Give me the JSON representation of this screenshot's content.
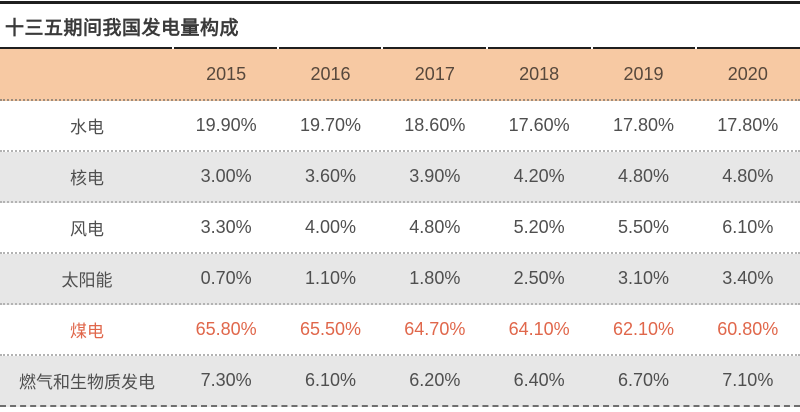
{
  "title": "十三五期间我国发电量构成",
  "chart_data": {
    "type": "table",
    "title": "十三五期间我国发电量构成",
    "columns": [
      "2015",
      "2016",
      "2017",
      "2018",
      "2019",
      "2020"
    ],
    "rows": [
      {
        "label": "水电",
        "values": [
          "19.90%",
          "19.70%",
          "18.60%",
          "17.60%",
          "17.80%",
          "17.80%"
        ],
        "highlight": false
      },
      {
        "label": "核电",
        "values": [
          "3.00%",
          "3.60%",
          "3.90%",
          "4.20%",
          "4.80%",
          "4.80%"
        ],
        "highlight": false
      },
      {
        "label": "风电",
        "values": [
          "3.30%",
          "4.00%",
          "4.80%",
          "5.20%",
          "5.50%",
          "6.10%"
        ],
        "highlight": false
      },
      {
        "label": "太阳能",
        "values": [
          "0.70%",
          "1.10%",
          "1.80%",
          "2.50%",
          "3.10%",
          "3.40%"
        ],
        "highlight": false
      },
      {
        "label": "煤电",
        "values": [
          "65.80%",
          "65.50%",
          "64.70%",
          "64.10%",
          "62.10%",
          "60.80%"
        ],
        "highlight": true
      },
      {
        "label": "燃气和生物质发电",
        "values": [
          "7.30%",
          "6.10%",
          "6.20%",
          "6.40%",
          "6.70%",
          "7.10%"
        ],
        "highlight": false
      }
    ]
  },
  "colors": {
    "top_rule": "#1f1f1f",
    "header_bg": "#f7c9a3",
    "header_text": "#57483c",
    "alt_row_bg": "#e7e7e7",
    "body_text": "#4f4f4f",
    "highlight_text": "#e0674b",
    "title_text": "#3a3a3a"
  }
}
